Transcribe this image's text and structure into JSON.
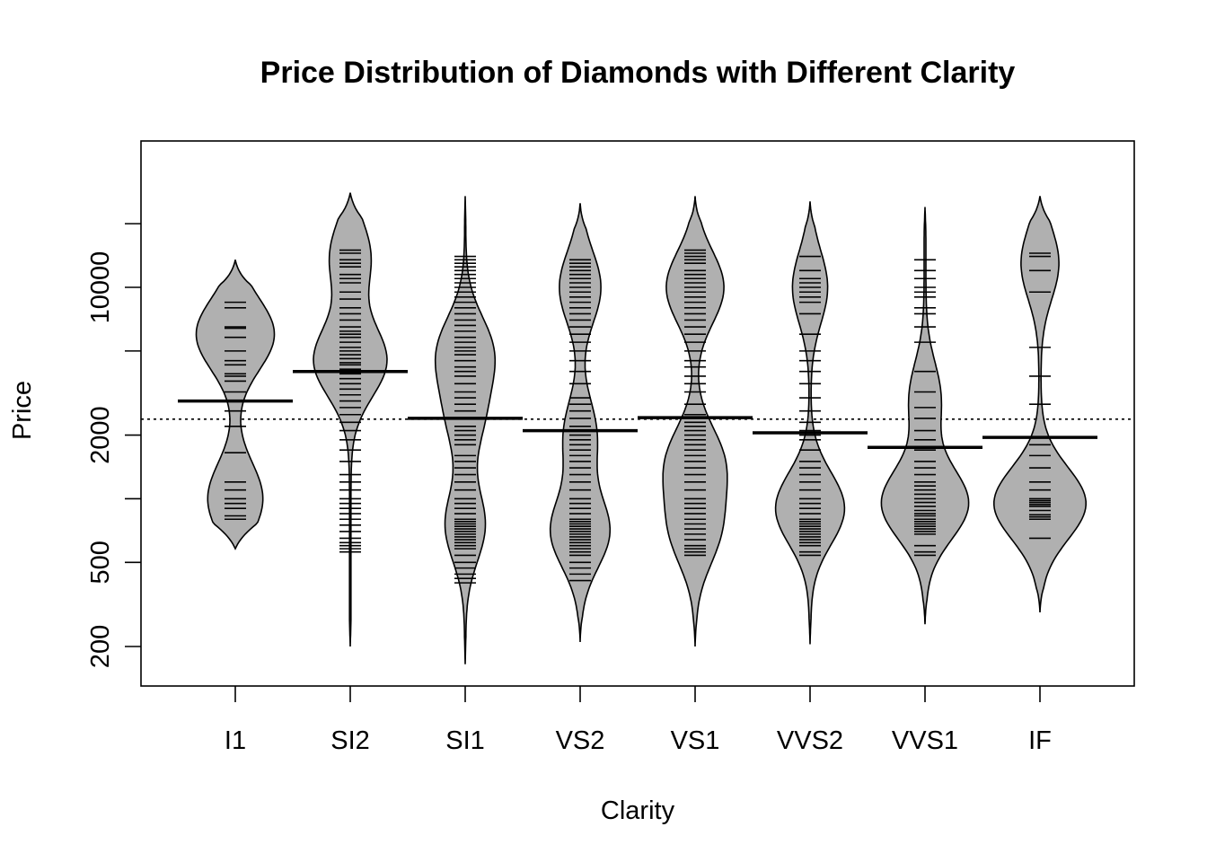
{
  "chart_data": {
    "type": "beanplot",
    "title": "Price Distribution of Diamonds with Different Clarity",
    "xlabel": "Clarity",
    "ylabel": "Price",
    "y_scale": "log",
    "y_ticks": [
      200,
      500,
      2000,
      10000
    ],
    "y_tick_labels": [
      "200",
      "500",
      "2000",
      "10000"
    ],
    "ylim": [
      150,
      30000
    ],
    "overall_mean": 2380,
    "categories": [
      "I1",
      "SI2",
      "SI1",
      "VS2",
      "VS1",
      "VVS2",
      "VVS1",
      "IF"
    ],
    "groups": [
      {
        "name": "I1",
        "mean": 2900,
        "min": 580,
        "max": 13500,
        "modes": [
          [
            6000,
            1.0
          ],
          [
            1000,
            0.7
          ]
        ],
        "width": 0.34,
        "values": [
          8500,
          8000,
          6500,
          6400,
          5800,
          5000,
          4500,
          4300,
          3900,
          3800,
          3600,
          3200,
          2900,
          2600,
          2200,
          1650,
          1200,
          1100,
          1000,
          950,
          900,
          830,
          800
        ]
      },
      {
        "name": "SI2",
        "mean": 4000,
        "min": 200,
        "max": 28000,
        "modes": [
          [
            4500,
            1.0
          ],
          [
            14000,
            0.55
          ]
        ],
        "width": 0.32,
        "values": [
          15000,
          14500,
          13500,
          13000,
          12500,
          11500,
          11000,
          10500,
          9500,
          8800,
          8000,
          7500,
          7000,
          6500,
          6200,
          6000,
          5800,
          5500,
          5200,
          5000,
          4800,
          4600,
          4400,
          4300,
          4100,
          3900,
          3700,
          3500,
          3300,
          3100,
          2900,
          2700,
          2500,
          2300,
          2100,
          1900,
          1700,
          1500,
          1300,
          1200,
          1100,
          1000,
          950,
          900,
          850,
          800,
          750,
          700,
          650,
          620,
          600,
          580,
          560
        ]
      },
      {
        "name": "SI1",
        "mean": 2400,
        "min": 165,
        "max": 27000,
        "modes": [
          [
            5000,
            1.0
          ],
          [
            750,
            0.75
          ],
          [
            2400,
            0.6
          ]
        ],
        "width": 0.26,
        "values": [
          14000,
          13500,
          13000,
          12500,
          12000,
          11500,
          11000,
          10500,
          10000,
          9500,
          9000,
          8500,
          8000,
          7500,
          7000,
          6600,
          6200,
          5800,
          5500,
          5200,
          5000,
          4800,
          4500,
          4200,
          4000,
          3800,
          3500,
          3200,
          3000,
          2800,
          2600,
          2400,
          2200,
          2100,
          2000,
          1900,
          1800,
          1600,
          1500,
          1400,
          1300,
          1200,
          1100,
          1000,
          950,
          900,
          850,
          800,
          780,
          760,
          740,
          720,
          700,
          680,
          660,
          640,
          620,
          600,
          580,
          540,
          500,
          470,
          440,
          420,
          400
        ]
      },
      {
        "name": "VS2",
        "mean": 2100,
        "min": 210,
        "max": 25000,
        "modes": [
          [
            700,
            1.0
          ],
          [
            10000,
            0.7
          ],
          [
            2000,
            0.55
          ]
        ],
        "width": 0.26,
        "values": [
          13500,
          13000,
          12500,
          12000,
          11500,
          11000,
          10500,
          10000,
          9500,
          9000,
          8500,
          8000,
          7500,
          7000,
          6500,
          6000,
          5500,
          5000,
          4500,
          4000,
          3500,
          3000,
          2800,
          2600,
          2400,
          2200,
          2100,
          2000,
          1900,
          1800,
          1700,
          1600,
          1500,
          1400,
          1300,
          1200,
          1100,
          1000,
          950,
          900,
          850,
          800,
          780,
          760,
          740,
          720,
          700,
          680,
          660,
          640,
          620,
          600,
          580,
          560,
          540,
          500,
          470,
          440,
          410
        ]
      },
      {
        "name": "VS1",
        "mean": 2420,
        "min": 200,
        "max": 27000,
        "modes": [
          [
            10000,
            1.0
          ],
          [
            1500,
            0.95
          ],
          [
            700,
            0.8
          ]
        ],
        "width": 0.28,
        "values": [
          15000,
          14500,
          14000,
          13500,
          13000,
          12000,
          11500,
          11000,
          10500,
          10000,
          9500,
          9000,
          8500,
          8000,
          7500,
          7000,
          6500,
          6000,
          5500,
          5000,
          4500,
          4200,
          3800,
          3500,
          3200,
          2800,
          2500,
          2300,
          2200,
          2100,
          2000,
          1900,
          1800,
          1700,
          1600,
          1500,
          1400,
          1300,
          1200,
          1100,
          1000,
          950,
          900,
          850,
          800,
          760,
          720,
          680,
          640,
          600,
          580,
          560,
          540
        ]
      },
      {
        "name": "VVS2",
        "mean": 2050,
        "min": 205,
        "max": 25500,
        "modes": [
          [
            900,
            1.0
          ],
          [
            10000,
            0.5
          ]
        ],
        "width": 0.3,
        "values": [
          14000,
          12000,
          11000,
          10500,
          10000,
          9500,
          9000,
          8500,
          7500,
          6000,
          5000,
          4500,
          4000,
          3500,
          3000,
          2600,
          2300,
          2100,
          2000,
          1900,
          1700,
          1500,
          1400,
          1300,
          1200,
          1100,
          1000,
          950,
          900,
          850,
          800,
          780,
          760,
          740,
          720,
          700,
          680,
          660,
          640,
          620,
          600,
          560,
          540
        ]
      },
      {
        "name": "VVS1",
        "mean": 1750,
        "min": 255,
        "max": 24000,
        "modes": [
          [
            950,
            1.0
          ],
          [
            3000,
            0.35
          ]
        ],
        "width": 0.38,
        "values": [
          13500,
          12000,
          11000,
          10000,
          9500,
          9000,
          8000,
          7500,
          6500,
          5500,
          4000,
          3200,
          2700,
          2400,
          2100,
          1900,
          1700,
          1500,
          1400,
          1300,
          1200,
          1150,
          1100,
          1050,
          1000,
          960,
          920,
          880,
          850,
          830,
          800,
          780,
          760,
          740,
          720,
          700,
          680,
          600,
          560,
          540
        ]
      },
      {
        "name": "IF",
        "mean": 1950,
        "min": 290,
        "max": 27000,
        "modes": [
          [
            950,
            1.0
          ],
          [
            13000,
            0.4
          ]
        ],
        "width": 0.4,
        "values": [
          14500,
          14000,
          12000,
          9500,
          5200,
          3800,
          2800,
          1800,
          1600,
          1400,
          1200,
          1100,
          1000,
          980,
          960,
          940,
          920,
          880,
          840,
          820,
          800,
          650
        ]
      }
    ]
  }
}
